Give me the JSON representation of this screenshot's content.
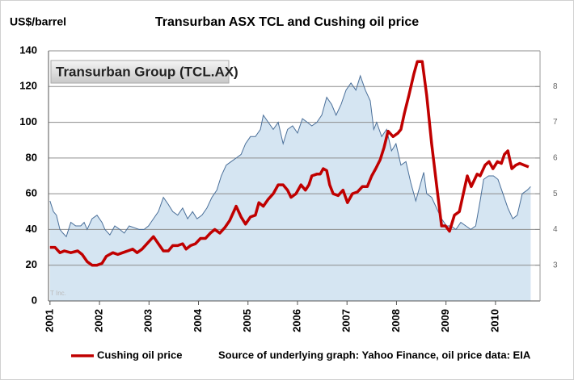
{
  "chart_data": {
    "type": "line",
    "title": "Transurban ASX TCL and Cushing oil price",
    "y_label": "US$/barrel",
    "source": "Source of underlying graph: Yahoo Finance, oil price data: EIA",
    "watermark": "T Inc.",
    "xlim": [
      2000.97,
      2010.9
    ],
    "xticks": [
      2001,
      2002,
      2003,
      2004,
      2005,
      2006,
      2007,
      2008,
      2009,
      2010
    ],
    "ylim": [
      0,
      140
    ],
    "yticks": [
      0,
      20,
      40,
      60,
      80,
      100,
      120,
      140
    ],
    "y2lim": [
      2,
      9
    ],
    "y2ticks": [
      3,
      4,
      5,
      6,
      7,
      8
    ],
    "grid": true,
    "legend": "bottom-left",
    "series": [
      {
        "name": "Transurban Group (TCL.AX)",
        "color": "#4a6f99",
        "fill_color": "#d5e5f2",
        "axis": "y2",
        "x": [
          2001.0,
          2001.07,
          2001.13,
          2001.2,
          2001.26,
          2001.33,
          2001.42,
          2001.52,
          2001.62,
          2001.69,
          2001.75,
          2001.85,
          2001.95,
          2002.05,
          2002.11,
          2002.21,
          2002.31,
          2002.41,
          2002.5,
          2002.6,
          2002.7,
          2002.8,
          2002.9,
          2002.99,
          2003.09,
          2003.19,
          2003.29,
          2003.39,
          2003.48,
          2003.58,
          2003.68,
          2003.78,
          2003.88,
          2003.97,
          2004.07,
          2004.17,
          2004.27,
          2004.37,
          2004.46,
          2004.56,
          2004.66,
          2004.76,
          2004.86,
          2004.95,
          2005.05,
          2005.15,
          2005.25,
          2005.31,
          2005.41,
          2005.51,
          2005.61,
          2005.71,
          2005.8,
          2005.9,
          2006.0,
          2006.1,
          2006.2,
          2006.29,
          2006.39,
          2006.49,
          2006.59,
          2006.69,
          2006.78,
          2006.88,
          2006.98,
          2007.08,
          2007.18,
          2007.27,
          2007.37,
          2007.47,
          2007.54,
          2007.6,
          2007.7,
          2007.8,
          2007.9,
          2007.99,
          2008.09,
          2008.19,
          2008.29,
          2008.39,
          2008.45,
          2008.55,
          2008.61,
          2008.71,
          2008.81,
          2008.91,
          2009.01,
          2009.1,
          2009.2,
          2009.3,
          2009.4,
          2009.5,
          2009.6,
          2009.69,
          2009.76,
          2009.86,
          2009.96,
          2010.05,
          2010.15,
          2010.25,
          2010.35,
          2010.44,
          2010.54,
          2010.64,
          2010.71
        ],
        "values": [
          4.8,
          4.5,
          4.4,
          4.0,
          3.9,
          3.8,
          4.2,
          4.1,
          4.1,
          4.2,
          4.0,
          4.3,
          4.4,
          4.2,
          4.0,
          3.85,
          4.1,
          4.0,
          3.9,
          4.1,
          4.05,
          4.0,
          4.0,
          4.1,
          4.3,
          4.5,
          4.9,
          4.7,
          4.5,
          4.4,
          4.6,
          4.3,
          4.5,
          4.3,
          4.4,
          4.6,
          4.9,
          5.1,
          5.5,
          5.8,
          5.9,
          6.0,
          6.1,
          6.4,
          6.6,
          6.6,
          6.8,
          7.2,
          7.0,
          6.8,
          7.0,
          6.4,
          6.8,
          6.9,
          6.7,
          7.1,
          7.0,
          6.9,
          7.0,
          7.2,
          7.7,
          7.5,
          7.2,
          7.5,
          7.9,
          8.1,
          7.9,
          8.3,
          7.9,
          7.6,
          6.8,
          7.0,
          6.6,
          6.8,
          6.2,
          6.4,
          5.8,
          5.9,
          5.3,
          4.8,
          5.1,
          5.6,
          5.0,
          4.9,
          4.6,
          4.3,
          4.1,
          4.1,
          4.0,
          4.2,
          4.1,
          4.0,
          4.1,
          4.8,
          5.4,
          5.5,
          5.5,
          5.4,
          5.0,
          4.6,
          4.3,
          4.4,
          5.0,
          5.1,
          5.2
        ]
      },
      {
        "name": "Cushing oil price",
        "color": "#c00000",
        "axis": "y",
        "x": [
          2001.0,
          2001.1,
          2001.2,
          2001.29,
          2001.42,
          2001.56,
          2001.65,
          2001.75,
          2001.85,
          2001.95,
          2002.05,
          2002.14,
          2002.27,
          2002.37,
          2002.47,
          2002.57,
          2002.67,
          2002.76,
          2002.86,
          2002.96,
          2003.09,
          2003.19,
          2003.29,
          2003.39,
          2003.48,
          2003.58,
          2003.68,
          2003.75,
          2003.84,
          2003.94,
          2004.04,
          2004.14,
          2004.24,
          2004.33,
          2004.43,
          2004.53,
          2004.63,
          2004.76,
          2004.86,
          2004.95,
          2005.05,
          2005.15,
          2005.22,
          2005.31,
          2005.41,
          2005.51,
          2005.61,
          2005.71,
          2005.8,
          2005.87,
          2005.97,
          2006.07,
          2006.16,
          2006.23,
          2006.29,
          2006.39,
          2006.46,
          2006.52,
          2006.59,
          2006.65,
          2006.72,
          2006.82,
          2006.92,
          2007.01,
          2007.11,
          2007.21,
          2007.31,
          2007.41,
          2007.5,
          2007.58,
          2007.67,
          2007.75,
          2007.83,
          2007.93,
          2008.03,
          2008.09,
          2008.16,
          2008.25,
          2008.35,
          2008.42,
          2008.52,
          2008.61,
          2008.71,
          2008.81,
          2008.91,
          2008.99,
          2009.07,
          2009.17,
          2009.27,
          2009.35,
          2009.43,
          2009.51,
          2009.63,
          2009.69,
          2009.79,
          2009.87,
          2009.95,
          2010.04,
          2010.12,
          2010.18,
          2010.25,
          2010.33,
          2010.41,
          2010.49,
          2010.58,
          2010.67
        ],
        "values": [
          30,
          30,
          27,
          28,
          27,
          28,
          26,
          22,
          20,
          20,
          21,
          25,
          27,
          26,
          27,
          28,
          29,
          27,
          29,
          32,
          36,
          32,
          28,
          28,
          31,
          31,
          32,
          29,
          31,
          32,
          35,
          35,
          38,
          40,
          38,
          41,
          45,
          53,
          47,
          43,
          47,
          48,
          55,
          53,
          57,
          60,
          65,
          65,
          62,
          58,
          60,
          65,
          62,
          65,
          70,
          71,
          71,
          74,
          73,
          65,
          60,
          59,
          62,
          55,
          60,
          61,
          64,
          64,
          70,
          74,
          79,
          86,
          95,
          92,
          94,
          96,
          105,
          115,
          127,
          134,
          134,
          115,
          88,
          65,
          42,
          42,
          39,
          48,
          50,
          60,
          70,
          64,
          71,
          70,
          76,
          78,
          74,
          78,
          77,
          82,
          84,
          74,
          76,
          77,
          76,
          75
        ]
      }
    ]
  }
}
